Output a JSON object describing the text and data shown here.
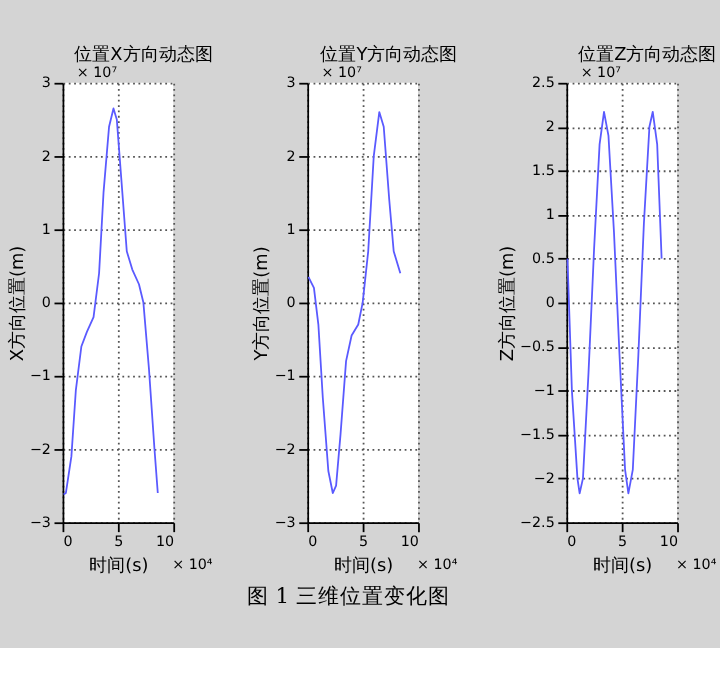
{
  "chart_data": [
    {
      "type": "line",
      "title": "位置X方向动态图",
      "xlabel": "时间(s)",
      "ylabel": "X方向位置(m)",
      "xlim": [
        0,
        10
      ],
      "xticks": [
        0,
        5,
        10
      ],
      "ylim": [
        -3,
        3
      ],
      "yticks": [
        -3,
        -2,
        -1,
        0,
        1,
        2,
        3
      ],
      "grid": true,
      "annotations": [
        "× 10⁷",
        "× 10⁴",
        "图 1 三维位置变化图"
      ],
      "series": [
        {
          "color": "#5a5aff",
          "x": [
            0.1,
            0.3,
            0.8,
            1.2,
            1.7,
            2.2,
            2.8,
            3.3,
            3.7,
            4.2,
            4.6,
            4.9,
            5.3,
            5.8,
            6.3,
            6.9,
            7.3,
            7.8,
            8.3,
            8.6
          ],
          "values": [
            -2.62,
            -2.6,
            -2.1,
            -1.2,
            -0.6,
            -0.4,
            -0.2,
            0.4,
            1.5,
            2.4,
            2.65,
            2.5,
            1.7,
            0.7,
            0.45,
            0.25,
            0,
            -0.9,
            -2.0,
            -2.6
          ]
        }
      ]
    },
    {
      "type": "line",
      "title": "位置Y方向动态图",
      "xlabel": "时间(s)",
      "ylabel": "Y方向位置(m)",
      "xlim": [
        0,
        10
      ],
      "xticks": [
        0,
        5,
        10
      ],
      "ylim": [
        -3,
        3
      ],
      "yticks": [
        -3,
        -2,
        -1,
        0,
        1,
        2,
        3
      ],
      "grid": true,
      "annotations": [
        "× 10⁷",
        "× 10⁴"
      ],
      "series": [
        {
          "color": "#5a5aff",
          "x": [
            0.1,
            0.6,
            1.0,
            1.4,
            1.9,
            2.3,
            2.6,
            3.0,
            3.5,
            4.0,
            4.6,
            5.0,
            5.5,
            6.0,
            6.5,
            6.9,
            7.4,
            7.8,
            8.4
          ],
          "values": [
            0.35,
            0.2,
            -0.3,
            -1.3,
            -2.3,
            -2.6,
            -2.5,
            -1.8,
            -0.8,
            -0.45,
            -0.3,
            0,
            0.7,
            2.0,
            2.6,
            2.4,
            1.4,
            0.7,
            0.4
          ]
        }
      ]
    },
    {
      "type": "line",
      "title": "位置Z方向动态图",
      "xlabel": "时间(s)",
      "ylabel": "Z方向位置(m)",
      "xlim": [
        0,
        10
      ],
      "xticks": [
        0,
        5,
        10
      ],
      "ylim": [
        -2.5,
        2.5
      ],
      "yticks": [
        -2.5,
        -2,
        -1.5,
        -1,
        -0.5,
        0,
        0.5,
        1,
        1.5,
        2,
        2.5
      ],
      "grid": true,
      "annotations": [
        "× 10⁷",
        "× 10⁴"
      ],
      "series": [
        {
          "color": "#5a5aff",
          "x": [
            0.1,
            0.5,
            1.0,
            1.2,
            1.5,
            2.0,
            2.5,
            3.0,
            3.4,
            3.8,
            4.3,
            4.8,
            5.3,
            5.6,
            6.0,
            6.5,
            7.0,
            7.5,
            7.8,
            8.2,
            8.6
          ],
          "values": [
            0.5,
            -1.0,
            -2.0,
            -2.17,
            -2.0,
            -0.8,
            0.6,
            1.8,
            2.17,
            1.9,
            0.8,
            -0.6,
            -1.9,
            -2.17,
            -1.9,
            -0.6,
            0.9,
            2.0,
            2.17,
            1.8,
            0.5
          ]
        }
      ]
    }
  ]
}
